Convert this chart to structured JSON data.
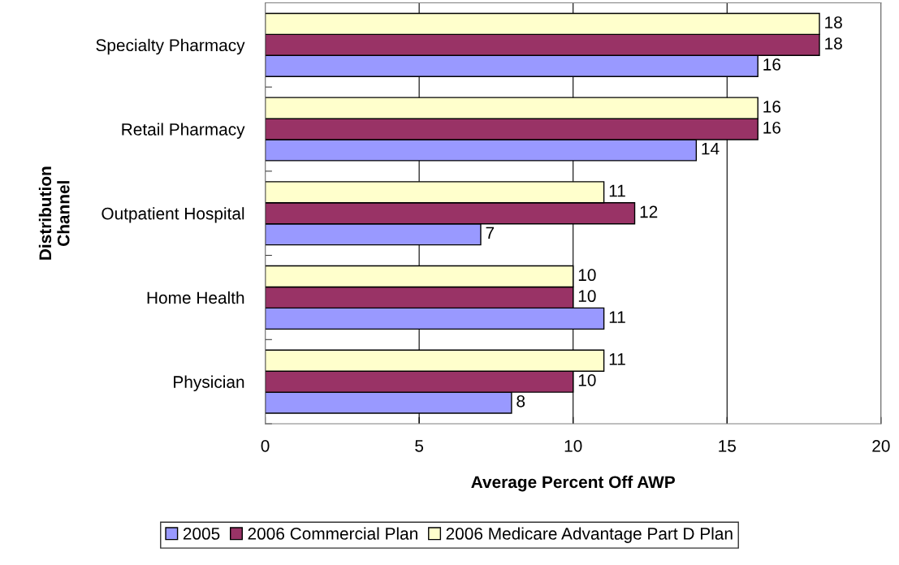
{
  "chart_data": {
    "type": "bar",
    "orientation": "horizontal",
    "xlabel": "Average Percent Off AWP",
    "ylabel": "Distribution\nChannel",
    "categories": [
      "Specialty Pharmacy",
      "Retail Pharmacy",
      "Outpatient Hospital",
      "Home Health",
      "Physician"
    ],
    "series": [
      {
        "name": "2005",
        "color": "#9999ff",
        "values": [
          16,
          14,
          7,
          11,
          8
        ]
      },
      {
        "name": "2006 Commercial Plan",
        "color": "#993366",
        "values": [
          18,
          16,
          12,
          10,
          10
        ]
      },
      {
        "name": "2006 Medicare Advantage Part D Plan",
        "color": "#ffffcc",
        "values": [
          18,
          16,
          11,
          10,
          11
        ]
      }
    ],
    "xlim": [
      0,
      20
    ],
    "xticks": [
      0,
      5,
      10,
      15,
      20
    ],
    "grid": "x",
    "legend": "bottom",
    "data_labels": true
  }
}
